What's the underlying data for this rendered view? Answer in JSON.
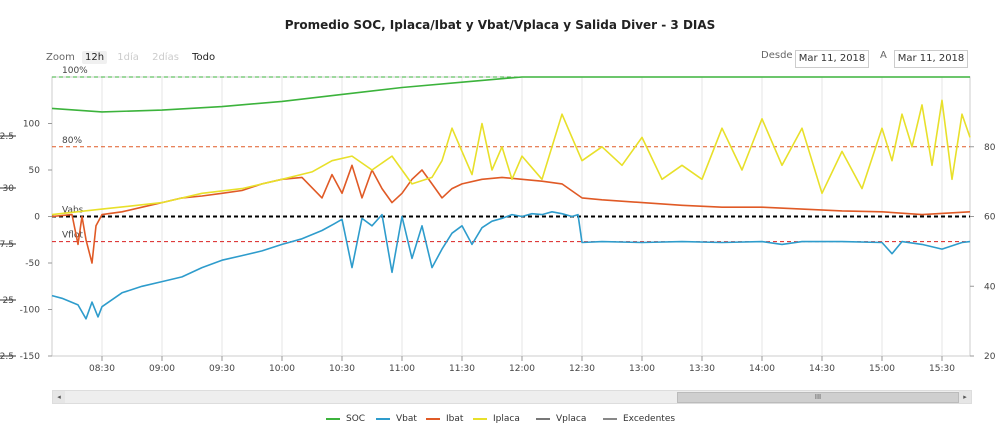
{
  "title": "Promedio SOC, Iplaca/Ibat y Vbat/Vplaca y Salida Diver - 3 DIAS",
  "zoom": {
    "label": "Zoom",
    "buttons": [
      {
        "label": "12h",
        "state": "active"
      },
      {
        "label": "1día",
        "state": "disabled"
      },
      {
        "label": "2días",
        "state": "disabled"
      },
      {
        "label": "Todo",
        "state": "normal"
      }
    ]
  },
  "range": {
    "from_label": "Desde",
    "from_value": "Mar 11, 2018",
    "to_label": "A",
    "to_value": "Mar 11, 2018"
  },
  "colors": {
    "SOC": "#3cb33c",
    "Vbat": "#2e9ccc",
    "Ibat": "#e05a26",
    "Iplaca": "#e8e02a",
    "Vplaca": "#777777",
    "Excedentes": "#888888"
  },
  "chart_data": {
    "type": "line",
    "title": "Promedio SOC, Iplaca/Ibat y Vbat/Vplaca y Salida Diver - 3 DIAS",
    "x_ticks": [
      "08:30",
      "09:00",
      "09:30",
      "10:00",
      "10:30",
      "11:00",
      "11:30",
      "12:00",
      "12:30",
      "13:00",
      "13:30",
      "14:00",
      "14:30",
      "15:00",
      "15:30"
    ],
    "xlim": [
      "08:05",
      "15:44"
    ],
    "y_current": {
      "ylim": [
        -150,
        150
      ],
      "ticks": [
        "100",
        "50",
        "0",
        "-50",
        "-100",
        "-150"
      ]
    },
    "y_voltage_left": {
      "ticks": [
        "2.5",
        "30",
        "7.5",
        "25",
        "2.5"
      ]
    },
    "y_right": {
      "ylim": [
        20,
        100
      ],
      "ticks": [
        "80",
        "60",
        "40",
        "20"
      ]
    },
    "plot_lines": [
      {
        "label": "100%",
        "color": "#3cb33c",
        "value": 100
      },
      {
        "label": "80%",
        "color": "#e05a26",
        "value": 80
      },
      {
        "label": "Vabs",
        "color": "#000000",
        "value": 0
      },
      {
        "label": "Vflot",
        "color": "#d92020",
        "value": -27
      }
    ],
    "series": [
      {
        "name": "SOC",
        "axis": "soc",
        "x": [
          "08:05",
          "08:30",
          "09:00",
          "09:30",
          "10:00",
          "10:30",
          "11:00",
          "11:30",
          "11:50",
          "12:00",
          "12:30",
          "13:00",
          "14:00",
          "15:00",
          "15:44"
        ],
        "values": [
          91,
          90,
          90.5,
          91.5,
          93,
          95,
          97,
          98.5,
          99.5,
          100,
          100,
          100,
          100,
          100,
          100
        ]
      },
      {
        "name": "Vbat",
        "axis": "current",
        "x": [
          "08:05",
          "08:10",
          "08:18",
          "08:22",
          "08:25",
          "08:28",
          "08:30",
          "08:40",
          "08:50",
          "09:00",
          "09:10",
          "09:20",
          "09:30",
          "09:40",
          "09:50",
          "10:00",
          "10:10",
          "10:20",
          "10:26",
          "10:30",
          "10:35",
          "10:40",
          "10:45",
          "10:50",
          "10:55",
          "11:00",
          "11:05",
          "11:10",
          "11:15",
          "11:20",
          "11:25",
          "11:30",
          "11:35",
          "11:40",
          "11:45",
          "11:50",
          "11:55",
          "12:00",
          "12:05",
          "12:10",
          "12:15",
          "12:20",
          "12:25",
          "12:28",
          "12:30",
          "12:40",
          "13:00",
          "13:20",
          "13:40",
          "14:00",
          "14:10",
          "14:20",
          "14:40",
          "15:00",
          "15:05",
          "15:10",
          "15:20",
          "15:30",
          "15:40",
          "15:44"
        ],
        "values": [
          -85,
          -88,
          -95,
          -110,
          -92,
          -108,
          -97,
          -82,
          -75,
          -70,
          -65,
          -55,
          -47,
          -42,
          -37,
          -30,
          -24,
          -15,
          -8,
          -3,
          -55,
          -2,
          -10,
          2,
          -60,
          0,
          -45,
          -10,
          -55,
          -35,
          -18,
          -10,
          -30,
          -12,
          -5,
          -2,
          2,
          0,
          3,
          2,
          5,
          3,
          0,
          2,
          -28,
          -27,
          -28,
          -27,
          -28,
          -27,
          -30,
          -27,
          -27,
          -28,
          -40,
          -27,
          -30,
          -35,
          -28,
          -27
        ]
      },
      {
        "name": "Ibat",
        "axis": "current",
        "x": [
          "08:05",
          "08:15",
          "08:18",
          "08:20",
          "08:22",
          "08:25",
          "08:27",
          "08:30",
          "08:40",
          "08:50",
          "09:00",
          "09:10",
          "09:20",
          "09:30",
          "09:40",
          "09:50",
          "10:00",
          "10:10",
          "10:20",
          "10:25",
          "10:30",
          "10:35",
          "10:40",
          "10:45",
          "10:50",
          "10:55",
          "11:00",
          "11:05",
          "11:10",
          "11:15",
          "11:20",
          "11:25",
          "11:30",
          "11:40",
          "11:50",
          "12:00",
          "12:10",
          "12:20",
          "12:30",
          "12:40",
          "13:00",
          "13:20",
          "13:40",
          "14:00",
          "14:20",
          "14:40",
          "15:00",
          "15:20",
          "15:44"
        ],
        "values": [
          0,
          2,
          -30,
          0,
          -25,
          -50,
          -10,
          2,
          5,
          10,
          15,
          20,
          22,
          25,
          28,
          35,
          40,
          42,
          20,
          45,
          25,
          55,
          20,
          50,
          30,
          15,
          25,
          40,
          50,
          35,
          20,
          30,
          35,
          40,
          42,
          40,
          38,
          35,
          20,
          18,
          15,
          12,
          10,
          10,
          8,
          6,
          5,
          2,
          5
        ]
      },
      {
        "name": "Iplaca",
        "axis": "current",
        "x": [
          "08:05",
          "08:30",
          "09:00",
          "09:20",
          "09:40",
          "10:00",
          "10:15",
          "10:25",
          "10:35",
          "10:45",
          "10:55",
          "11:05",
          "11:15",
          "11:20",
          "11:25",
          "11:30",
          "11:35",
          "11:40",
          "11:45",
          "11:50",
          "11:55",
          "12:00",
          "12:10",
          "12:20",
          "12:30",
          "12:40",
          "12:50",
          "13:00",
          "13:10",
          "13:20",
          "13:30",
          "13:40",
          "13:50",
          "14:00",
          "14:10",
          "14:20",
          "14:30",
          "14:40",
          "14:50",
          "15:00",
          "15:05",
          "15:10",
          "15:15",
          "15:20",
          "15:25",
          "15:30",
          "15:35",
          "15:40",
          "15:44"
        ],
        "values": [
          2,
          8,
          15,
          25,
          30,
          40,
          48,
          60,
          65,
          50,
          65,
          35,
          42,
          60,
          95,
          70,
          45,
          100,
          50,
          75,
          40,
          65,
          40,
          110,
          60,
          75,
          55,
          85,
          40,
          55,
          40,
          95,
          50,
          105,
          55,
          95,
          25,
          70,
          30,
          95,
          60,
          110,
          75,
          120,
          55,
          125,
          40,
          110,
          85
        ]
      },
      {
        "name": "Vplaca",
        "axis": "current",
        "x": [],
        "values": []
      },
      {
        "name": "Excedentes",
        "axis": "current",
        "x": [],
        "values": []
      }
    ]
  },
  "legend": [
    {
      "name": "SOC"
    },
    {
      "name": "Vbat"
    },
    {
      "name": "Ibat"
    },
    {
      "name": "Iplaca"
    },
    {
      "name": "Vplaca"
    },
    {
      "name": "Excedentes"
    }
  ],
  "scrollbar": {
    "grip_symbol": "III",
    "left_arrow": "◂",
    "right_arrow": "▸"
  }
}
